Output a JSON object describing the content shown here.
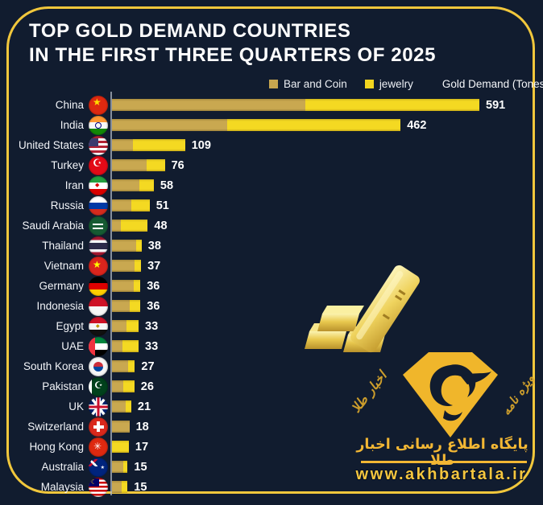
{
  "title": {
    "line1": "TOP GOLD DEMAND COUNTRIES",
    "line2": "IN THE FIRST THREE QUARTERS OF 2025"
  },
  "legend": {
    "bar_and_coin_label": "Bar and Coin",
    "jewelry_label": "jewelry",
    "axis_label": "Gold Demand (Tones)"
  },
  "colors": {
    "background": "#111C2F",
    "frame_gold": "#F1C73C",
    "bar_and_coin": "#C9A850",
    "jewelry": "#F4D922",
    "text": "#FFFFFF",
    "stamp_gold": "#F3B734"
  },
  "chart_data": {
    "type": "bar",
    "orientation": "horizontal",
    "title": "Top gold demand countries in the first three quarters of 2025",
    "xlabel": "Gold Demand (Tones)",
    "ylabel": "",
    "xlim": [
      0,
      600
    ],
    "grid": false,
    "legend_position": "top-right",
    "categories": [
      "China",
      "India",
      "United States",
      "Turkey",
      "Iran",
      "Russia",
      "Saudi Arabia",
      "Thailand",
      "Vietnam",
      "Germany",
      "Indonesia",
      "Egypt",
      "UAE",
      "South Korea",
      "Pakistan",
      "UK",
      "Switzerland",
      "Hong Kong",
      "Australia",
      "Malaysia"
    ],
    "series": [
      {
        "name": "Bar and Coin",
        "values": [
          311,
          184,
          31,
          50,
          38,
          26,
          12,
          31,
          29,
          28,
          22,
          18,
          13,
          19,
          13,
          15,
          18,
          0,
          11,
          9
        ]
      },
      {
        "name": "jewelry",
        "values": [
          280,
          278,
          78,
          26,
          20,
          25,
          36,
          7,
          8,
          8,
          14,
          15,
          20,
          8,
          13,
          6,
          0,
          17,
          4,
          6
        ]
      }
    ],
    "totals": [
      591,
      462,
      109,
      76,
      58,
      51,
      48,
      38,
      37,
      36,
      36,
      33,
      33,
      27,
      26,
      21,
      18,
      17,
      15,
      15
    ]
  },
  "countries": [
    {
      "name": "China",
      "flag": "china",
      "total": 591,
      "bar_and_coin": 311,
      "jewelry": 280
    },
    {
      "name": "India",
      "flag": "india",
      "total": 462,
      "bar_and_coin": 184,
      "jewelry": 278
    },
    {
      "name": "United States",
      "flag": "united-states",
      "total": 109,
      "bar_and_coin": 31,
      "jewelry": 78
    },
    {
      "name": "Turkey",
      "flag": "turkey",
      "total": 76,
      "bar_and_coin": 50,
      "jewelry": 26
    },
    {
      "name": "Iran",
      "flag": "iran",
      "total": 58,
      "bar_and_coin": 38,
      "jewelry": 20
    },
    {
      "name": "Russia",
      "flag": "russia",
      "total": 51,
      "bar_and_coin": 26,
      "jewelry": 25
    },
    {
      "name": "Saudi Arabia",
      "flag": "saudi-arabia",
      "total": 48,
      "bar_and_coin": 12,
      "jewelry": 36
    },
    {
      "name": "Thailand",
      "flag": "thailand",
      "total": 38,
      "bar_and_coin": 31,
      "jewelry": 7
    },
    {
      "name": "Vietnam",
      "flag": "vietnam",
      "total": 37,
      "bar_and_coin": 29,
      "jewelry": 8
    },
    {
      "name": "Germany",
      "flag": "germany",
      "total": 36,
      "bar_and_coin": 28,
      "jewelry": 8
    },
    {
      "name": "Indonesia",
      "flag": "indonesia",
      "total": 36,
      "bar_and_coin": 22,
      "jewelry": 14
    },
    {
      "name": "Egypt",
      "flag": "egypt",
      "total": 33,
      "bar_and_coin": 18,
      "jewelry": 15
    },
    {
      "name": "UAE",
      "flag": "uae",
      "total": 33,
      "bar_and_coin": 13,
      "jewelry": 20
    },
    {
      "name": "South Korea",
      "flag": "south-korea",
      "total": 27,
      "bar_and_coin": 19,
      "jewelry": 8
    },
    {
      "name": "Pakistan",
      "flag": "pakistan",
      "total": 26,
      "bar_and_coin": 13,
      "jewelry": 13
    },
    {
      "name": "UK",
      "flag": "uk",
      "total": 21,
      "bar_and_coin": 15,
      "jewelry": 6
    },
    {
      "name": "Switzerland",
      "flag": "switzerland",
      "total": 18,
      "bar_and_coin": 18,
      "jewelry": 0
    },
    {
      "name": "Hong Kong",
      "flag": "hong-kong",
      "total": 17,
      "bar_and_coin": 0,
      "jewelry": 17
    },
    {
      "name": "Australia",
      "flag": "australia",
      "total": 15,
      "bar_and_coin": 11,
      "jewelry": 4
    },
    {
      "name": "Malaysia",
      "flag": "malaysia",
      "total": 15,
      "bar_and_coin": 9,
      "jewelry": 6
    }
  ],
  "watermark": {
    "caption_fa": "پایگاه اطلاع رسانی اخبار طلا",
    "url": "www.akhbartala.ir",
    "script_left_fa": "اخبار طلا",
    "script_right_fa": "ویژه نامه"
  }
}
